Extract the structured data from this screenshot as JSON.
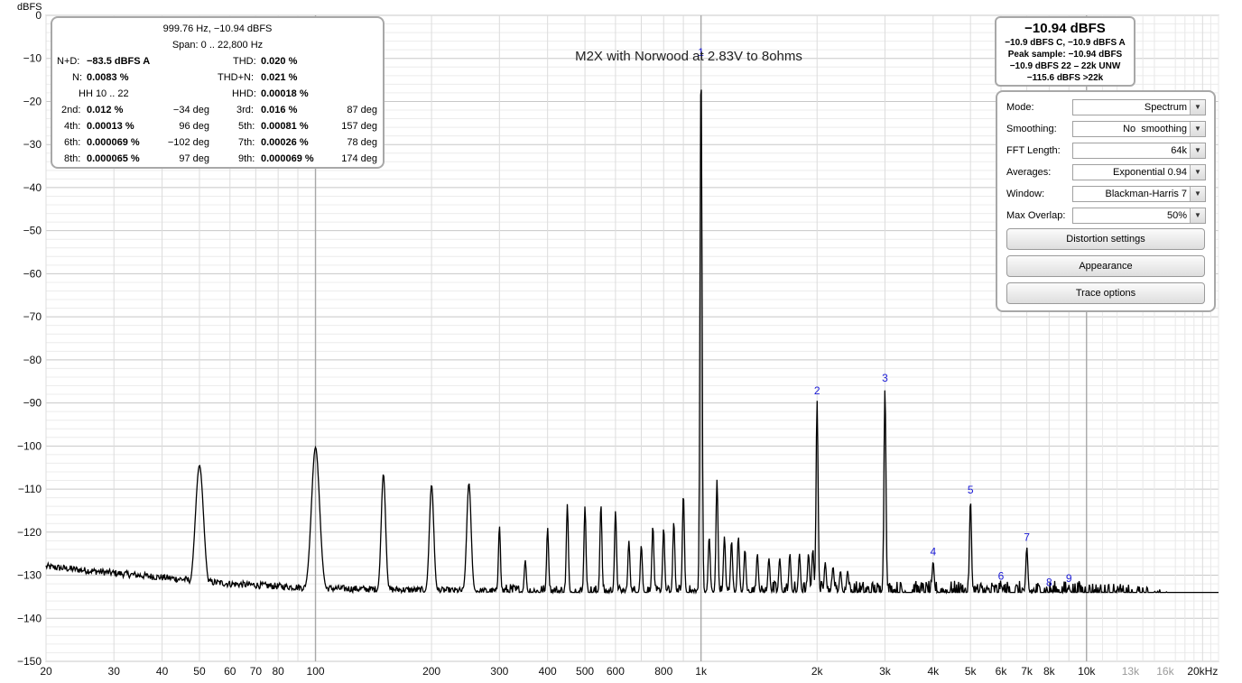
{
  "app": {
    "units_label": "dBFS",
    "chart_title": "M2X with Norwood at 2.83V to 8ohms"
  },
  "distortion": {
    "freq_level": "999.76 Hz, −10.94 dBFS",
    "span": "Span: 0 .. 22,800 Hz",
    "nd_label": "N+D:",
    "nd_value": "−83.5 dBFS A",
    "thd_label": "THD:",
    "thd_value": "0.020 %",
    "n_label": "N:",
    "n_value": "0.0083 %",
    "thdn_label": "THD+N:",
    "thdn_value": "0.021 %",
    "hh_label": "HH 10 .. 22",
    "hhd_label": "HHD:",
    "hhd_value": "0.00018 %",
    "harmonics": [
      {
        "label": "2nd:",
        "value": "0.012 %",
        "phase": "−34 deg"
      },
      {
        "label": "3rd:",
        "value": "0.016 %",
        "phase": "87 deg"
      },
      {
        "label": "4th:",
        "value": "0.00013 %",
        "phase": "96 deg"
      },
      {
        "label": "5th:",
        "value": "0.00081 %",
        "phase": "157 deg"
      },
      {
        "label": "6th:",
        "value": "0.000069 %",
        "phase": "−102 deg"
      },
      {
        "label": "7th:",
        "value": "0.00026 %",
        "phase": "78 deg"
      },
      {
        "label": "8th:",
        "value": "0.000065 %",
        "phase": "97 deg"
      },
      {
        "label": "9th:",
        "value": "0.000069 %",
        "phase": "174 deg"
      }
    ]
  },
  "level": {
    "main": "−10.94 dBFS",
    "line1": "−10.9 dBFS C, −10.9 dBFS A",
    "line2": "Peak sample: −10.94 dBFS",
    "line3": "−10.9 dBFS 22 – 22k UNW",
    "line4": "−115.6 dBFS >22k"
  },
  "controls": {
    "mode": {
      "label": "Mode:",
      "value": "Spectrum"
    },
    "smoothing": {
      "label": "Smoothing:",
      "value": "No  smoothing"
    },
    "fft": {
      "label": "FFT Length:",
      "value": "64k"
    },
    "averages": {
      "label": "Averages:",
      "value": "Exponential 0.94"
    },
    "window": {
      "label": "Window:",
      "value": "Blackman-Harris 7"
    },
    "overlap": {
      "label": "Max Overlap:",
      "value": "50%"
    },
    "btn_distortion": "Distortion settings",
    "btn_appearance": "Appearance",
    "btn_trace": "Trace options"
  },
  "chart_data": {
    "type": "line",
    "title": "M2X with Norwood at 2.83V to 8ohms",
    "ylabel": "dBFS",
    "xlabel": "",
    "xscale": "log",
    "xlim": [
      20,
      22000
    ],
    "ylim": [
      -150,
      0
    ],
    "y_ticks": [
      0,
      -10,
      -20,
      -30,
      -40,
      -50,
      -60,
      -70,
      -80,
      -90,
      -100,
      -110,
      -120,
      -130,
      -140,
      -150
    ],
    "x_ticks": [
      {
        "v": 20,
        "t": "20"
      },
      {
        "v": 30,
        "t": "30"
      },
      {
        "v": 40,
        "t": "40"
      },
      {
        "v": 50,
        "t": "50"
      },
      {
        "v": 60,
        "t": "60"
      },
      {
        "v": 70,
        "t": "70"
      },
      {
        "v": 80,
        "t": "80"
      },
      {
        "v": 100,
        "t": "100"
      },
      {
        "v": 200,
        "t": "200"
      },
      {
        "v": 300,
        "t": "300"
      },
      {
        "v": 400,
        "t": "400"
      },
      {
        "v": 500,
        "t": "500"
      },
      {
        "v": 600,
        "t": "600"
      },
      {
        "v": 800,
        "t": "800"
      },
      {
        "v": 1000,
        "t": "1k"
      },
      {
        "v": 2000,
        "t": "2k"
      },
      {
        "v": 3000,
        "t": "3k"
      },
      {
        "v": 4000,
        "t": "4k"
      },
      {
        "v": 5000,
        "t": "5k"
      },
      {
        "v": 6000,
        "t": "6k"
      },
      {
        "v": 7000,
        "t": "7k"
      },
      {
        "v": 8000,
        "t": "8k"
      },
      {
        "v": 10000,
        "t": "10k"
      },
      {
        "v": 13000,
        "t": "13k",
        "dim": true
      },
      {
        "v": 16000,
        "t": "16k",
        "dim": true
      },
      {
        "v": 20000,
        "t": "20kHz"
      }
    ],
    "harmonic_markers": [
      {
        "n": "1",
        "f": 1000,
        "db": -10.9
      },
      {
        "n": "2",
        "f": 2000,
        "db": -89.5
      },
      {
        "n": "3",
        "f": 3000,
        "db": -86.5
      },
      {
        "n": "4",
        "f": 4000,
        "db": -126.8
      },
      {
        "n": "5",
        "f": 5000,
        "db": -112.5
      },
      {
        "n": "6",
        "f": 6000,
        "db": -132.5
      },
      {
        "n": "7",
        "f": 7000,
        "db": -123.5
      },
      {
        "n": "8",
        "f": 8000,
        "db": -134.0
      },
      {
        "n": "9",
        "f": 9000,
        "db": -133.0
      }
    ],
    "noise_floor": [
      [
        20,
        -128
      ],
      [
        30,
        -129.5
      ],
      [
        40,
        -130.5
      ],
      [
        60,
        -132
      ],
      [
        100,
        -133
      ],
      [
        200,
        -133.5
      ],
      [
        500,
        -134
      ],
      [
        1000,
        -134
      ],
      [
        2000,
        -134
      ],
      [
        5000,
        -134
      ],
      [
        10000,
        -134
      ],
      [
        15000,
        -135.5
      ],
      [
        20000,
        -139
      ],
      [
        22000,
        -141
      ]
    ],
    "spectral_peaks": [
      [
        50,
        -104.5
      ],
      [
        100,
        -100.3
      ],
      [
        150,
        -106.5
      ],
      [
        200,
        -109
      ],
      [
        250,
        -108.6
      ],
      [
        300,
        -118.5
      ],
      [
        350,
        -126.5
      ],
      [
        400,
        -119
      ],
      [
        450,
        -113.5
      ],
      [
        500,
        -114
      ],
      [
        550,
        -113.5
      ],
      [
        600,
        -115
      ],
      [
        650,
        -122
      ],
      [
        700,
        -123
      ],
      [
        750,
        -118.5
      ],
      [
        800,
        -119
      ],
      [
        850,
        -117.5
      ],
      [
        900,
        -111
      ],
      [
        1000,
        -10.9
      ],
      [
        1050,
        -121
      ],
      [
        1100,
        -107.8
      ],
      [
        1150,
        -121
      ],
      [
        1200,
        -122
      ],
      [
        1250,
        -121
      ],
      [
        1300,
        -124
      ],
      [
        1400,
        -125
      ],
      [
        1500,
        -126
      ],
      [
        1600,
        -126
      ],
      [
        1700,
        -125
      ],
      [
        1800,
        -125
      ],
      [
        1900,
        -125
      ],
      [
        1950,
        -124
      ],
      [
        2000,
        -89.5
      ],
      [
        2100,
        -127
      ],
      [
        2200,
        -128
      ],
      [
        2300,
        -129
      ],
      [
        2400,
        -129
      ],
      [
        3000,
        -86.5
      ],
      [
        4000,
        -126.8
      ],
      [
        5000,
        -112.5
      ],
      [
        6000,
        -132.5
      ],
      [
        7000,
        -123.5
      ],
      [
        8000,
        -134
      ],
      [
        9000,
        -133
      ]
    ]
  }
}
